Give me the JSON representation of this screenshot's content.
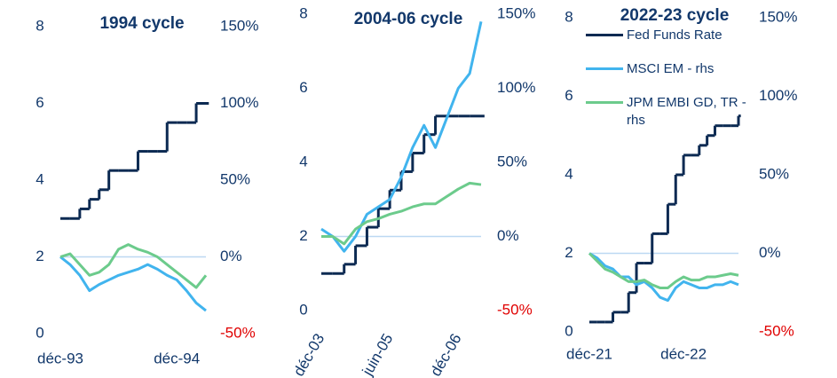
{
  "chart_data": [
    {
      "type": "line",
      "title": "1994 cycle",
      "categories": [
        "déc-93",
        null,
        null,
        null,
        null,
        null,
        null,
        null,
        null,
        null,
        null,
        null,
        "déc-94",
        null,
        null,
        null
      ],
      "series": [
        {
          "name": "Fed Funds Rate",
          "color": "#0c2a52",
          "drawstyle": "steps",
          "values": [
            3,
            3,
            3.25,
            3.5,
            3.75,
            4.25,
            4.25,
            4.25,
            4.75,
            4.75,
            4.75,
            5.5,
            5.5,
            5.5,
            6,
            6
          ]
        },
        {
          "name": "MSCI EM - rhs",
          "color": "#41b4ee",
          "axis": "y2",
          "values": [
            0,
            -5,
            -12,
            -22,
            -18,
            -15,
            -12,
            -10,
            -8,
            -5,
            -8,
            -12,
            -15,
            -22,
            -30,
            -35
          ]
        },
        {
          "name": "JPM EMBI GD, TR - rhs",
          "color": "#6ccb8c",
          "axis": "y2",
          "values": [
            0,
            2,
            -5,
            -12,
            -10,
            -5,
            5,
            8,
            5,
            3,
            0,
            -5,
            -10,
            -15,
            -20,
            -12
          ]
        }
      ],
      "ylim": [
        0,
        8
      ],
      "yticks": [
        0,
        2,
        4,
        6,
        8
      ],
      "y2lim": [
        -50,
        150
      ],
      "y2ticks": [
        {
          "value": -50,
          "label": "-50%"
        },
        {
          "value": 0,
          "label": "0%"
        },
        {
          "value": 50,
          "label": "50%"
        },
        {
          "value": 100,
          "label": "100%"
        },
        {
          "value": 150,
          "label": "150%"
        }
      ],
      "zero_line": true,
      "negative_tick_color": "#e00000"
    },
    {
      "type": "line",
      "title": "2004-06 cycle",
      "categories": [
        "déc-03",
        null,
        null,
        null,
        null,
        null,
        "juin-05",
        null,
        null,
        null,
        null,
        null,
        "déc-06",
        null,
        null
      ],
      "series": [
        {
          "name": "Fed Funds Rate",
          "color": "#0c2a52",
          "drawstyle": "steps",
          "values": [
            1,
            1,
            1.25,
            1.75,
            2.25,
            2.75,
            3.25,
            3.75,
            4.25,
            4.75,
            5.25,
            5.25,
            5.25,
            5.25,
            5.25
          ]
        },
        {
          "name": "MSCI EM - rhs",
          "color": "#41b4ee",
          "axis": "y2",
          "values": [
            5,
            0,
            -10,
            0,
            15,
            20,
            25,
            40,
            60,
            75,
            60,
            80,
            100,
            110,
            145
          ]
        },
        {
          "name": "JPM EMBI GD, TR - rhs",
          "color": "#6ccb8c",
          "axis": "y2",
          "values": [
            0,
            0,
            -5,
            5,
            10,
            12,
            15,
            17,
            20,
            22,
            22,
            27,
            32,
            36,
            35
          ]
        }
      ],
      "ylim": [
        0,
        8
      ],
      "yticks": [
        0,
        2,
        4,
        6,
        8
      ],
      "y2lim": [
        -50,
        150
      ],
      "y2ticks": [
        {
          "value": -50,
          "label": "-50%"
        },
        {
          "value": 0,
          "label": "0%"
        },
        {
          "value": 50,
          "label": "50%"
        },
        {
          "value": 100,
          "label": "100%"
        },
        {
          "value": 150,
          "label": "150%"
        }
      ],
      "zero_line": true,
      "negative_tick_color": "#e00000"
    },
    {
      "type": "line",
      "title": "2022-23 cycle",
      "categories": [
        "déc-21",
        null,
        null,
        null,
        null,
        null,
        null,
        null,
        null,
        null,
        null,
        null,
        "déc-22",
        null,
        null,
        null,
        null,
        null,
        null,
        null
      ],
      "series": [
        {
          "name": "Fed Funds Rate",
          "color": "#0c2a52",
          "drawstyle": "steps",
          "values": [
            0.25,
            0.25,
            0.25,
            0.5,
            0.5,
            1,
            1.75,
            1.75,
            2.5,
            2.5,
            3.25,
            4,
            4.5,
            4.5,
            4.75,
            5,
            5.25,
            5.25,
            5.25,
            5.5
          ]
        },
        {
          "name": "MSCI EM - rhs",
          "color": "#41b4ee",
          "axis": "y2",
          "values": [
            0,
            -3,
            -8,
            -10,
            -15,
            -15,
            -20,
            -18,
            -22,
            -28,
            -30,
            -22,
            -18,
            -20,
            -22,
            -22,
            -20,
            -20,
            -18,
            -20
          ]
        },
        {
          "name": "JPM EMBI GD, TR - rhs",
          "color": "#6ccb8c",
          "axis": "y2",
          "values": [
            0,
            -5,
            -10,
            -12,
            -15,
            -18,
            -18,
            -17,
            -20,
            -22,
            -22,
            -18,
            -15,
            -17,
            -17,
            -15,
            -15,
            -14,
            -13,
            -14
          ]
        }
      ],
      "ylim": [
        0,
        8
      ],
      "yticks": [
        0,
        2,
        4,
        6,
        8
      ],
      "y2lim": [
        -50,
        150
      ],
      "y2ticks": [
        {
          "value": -50,
          "label": "-50%"
        },
        {
          "value": 0,
          "label": "0%"
        },
        {
          "value": 50,
          "label": "50%"
        },
        {
          "value": 100,
          "label": "100%"
        },
        {
          "value": 150,
          "label": "150%"
        }
      ],
      "zero_line": true,
      "negative_tick_color": "#e00000",
      "legend": "upper left"
    }
  ]
}
